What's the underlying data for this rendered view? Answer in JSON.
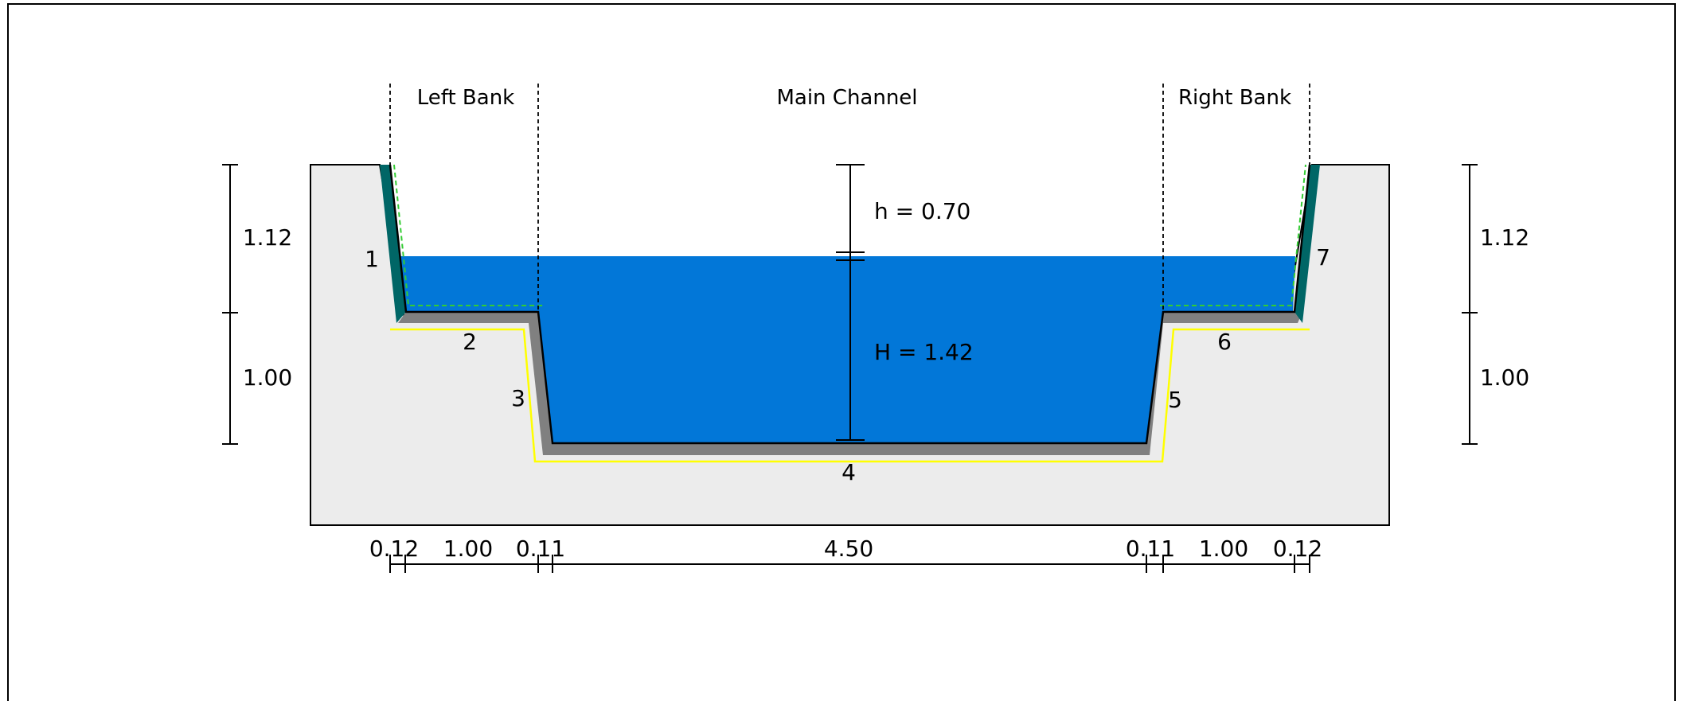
{
  "zones": {
    "left_bank": "Left Bank",
    "main_channel": "Main Channel",
    "right_bank": "Right Bank"
  },
  "levels": {
    "freeboard": "h = 0.70",
    "depth": "H = 1.42"
  },
  "side_heights": {
    "left_upper": "1.12",
    "left_lower": "1.00",
    "right_upper": "1.12",
    "right_lower": "1.00"
  },
  "segments": [
    "1",
    "2",
    "3",
    "4",
    "5",
    "6",
    "7"
  ],
  "widths": [
    "0.12",
    "1.00",
    "0.11",
    "4.50",
    "0.11",
    "1.00",
    "0.12"
  ],
  "colors": {
    "water": "#0277d8",
    "ground": "#ececec",
    "lining": "#808080",
    "bank_lining": "#006666",
    "yellow_outline": "#ffff00",
    "green_outline": "#33cc33"
  }
}
